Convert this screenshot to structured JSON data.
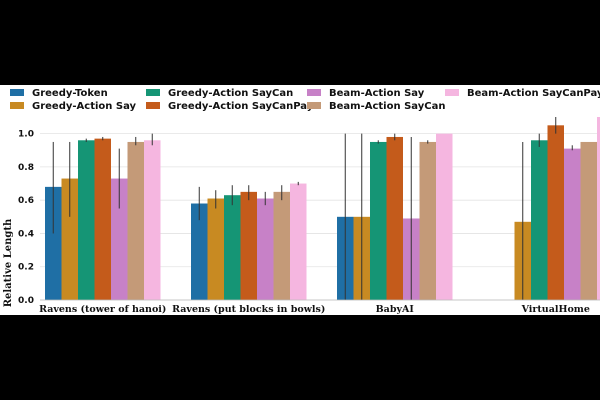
{
  "chart_data": {
    "type": "bar",
    "ylabel": "Relative Length",
    "ylim": [
      0.0,
      1.1
    ],
    "yticks": [
      "0.0",
      "0.2",
      "0.4",
      "0.6",
      "0.8",
      "1.0"
    ],
    "grid": true,
    "legend_position": "top",
    "categories": [
      "Ravens (tower of hanoi)",
      "Ravens (put blocks in bowls)",
      "BabyAI",
      "VirtualHome"
    ],
    "series": [
      {
        "name": "Greedy-Token",
        "color": "#1f6fa5",
        "values": [
          0.68,
          0.58,
          0.5,
          null
        ],
        "err": [
          [
            0.4,
            0.95
          ],
          [
            0.48,
            0.68
          ],
          [
            0.0,
            1.0
          ],
          null
        ]
      },
      {
        "name": "Greedy-Action Say",
        "color": "#c88a22",
        "values": [
          0.73,
          0.61,
          0.5,
          0.47
        ],
        "err": [
          [
            0.5,
            0.95
          ],
          [
            0.55,
            0.66
          ],
          [
            0.0,
            1.0
          ],
          [
            0.0,
            0.95
          ]
        ]
      },
      {
        "name": "Greedy-Action SayCan",
        "color": "#159575",
        "values": [
          0.96,
          0.63,
          0.95,
          0.96
        ],
        "err": [
          [
            0.95,
            0.97
          ],
          [
            0.57,
            0.69
          ],
          [
            0.94,
            0.96
          ],
          [
            0.92,
            1.0
          ]
        ]
      },
      {
        "name": "Greedy-Action SayCanPay",
        "color": "#c45b1b",
        "values": [
          0.97,
          0.65,
          0.98,
          1.05
        ],
        "err": [
          [
            0.96,
            0.98
          ],
          [
            0.6,
            0.69
          ],
          [
            0.96,
            1.0
          ],
          [
            1.0,
            1.1
          ]
        ]
      },
      {
        "name": "Beam-Action Say",
        "color": "#c781c7",
        "values": [
          0.73,
          0.61,
          0.49,
          0.91
        ],
        "err": [
          [
            0.55,
            0.91
          ],
          [
            0.57,
            0.65
          ],
          [
            0.0,
            0.98
          ],
          [
            0.9,
            0.93
          ]
        ]
      },
      {
        "name": "Beam-Action SayCan",
        "color": "#c49a78",
        "values": [
          0.95,
          0.65,
          0.95,
          0.95
        ],
        "err": [
          [
            0.93,
            0.98
          ],
          [
            0.6,
            0.69
          ],
          [
            0.94,
            0.96
          ],
          null
        ]
      },
      {
        "name": "Beam-Action SayCanPay",
        "color": "#f5b6e0",
        "values": [
          0.96,
          0.7,
          1.0,
          1.1
        ],
        "err": [
          [
            0.93,
            1.0
          ],
          [
            0.69,
            0.71
          ],
          null,
          null
        ]
      }
    ]
  }
}
